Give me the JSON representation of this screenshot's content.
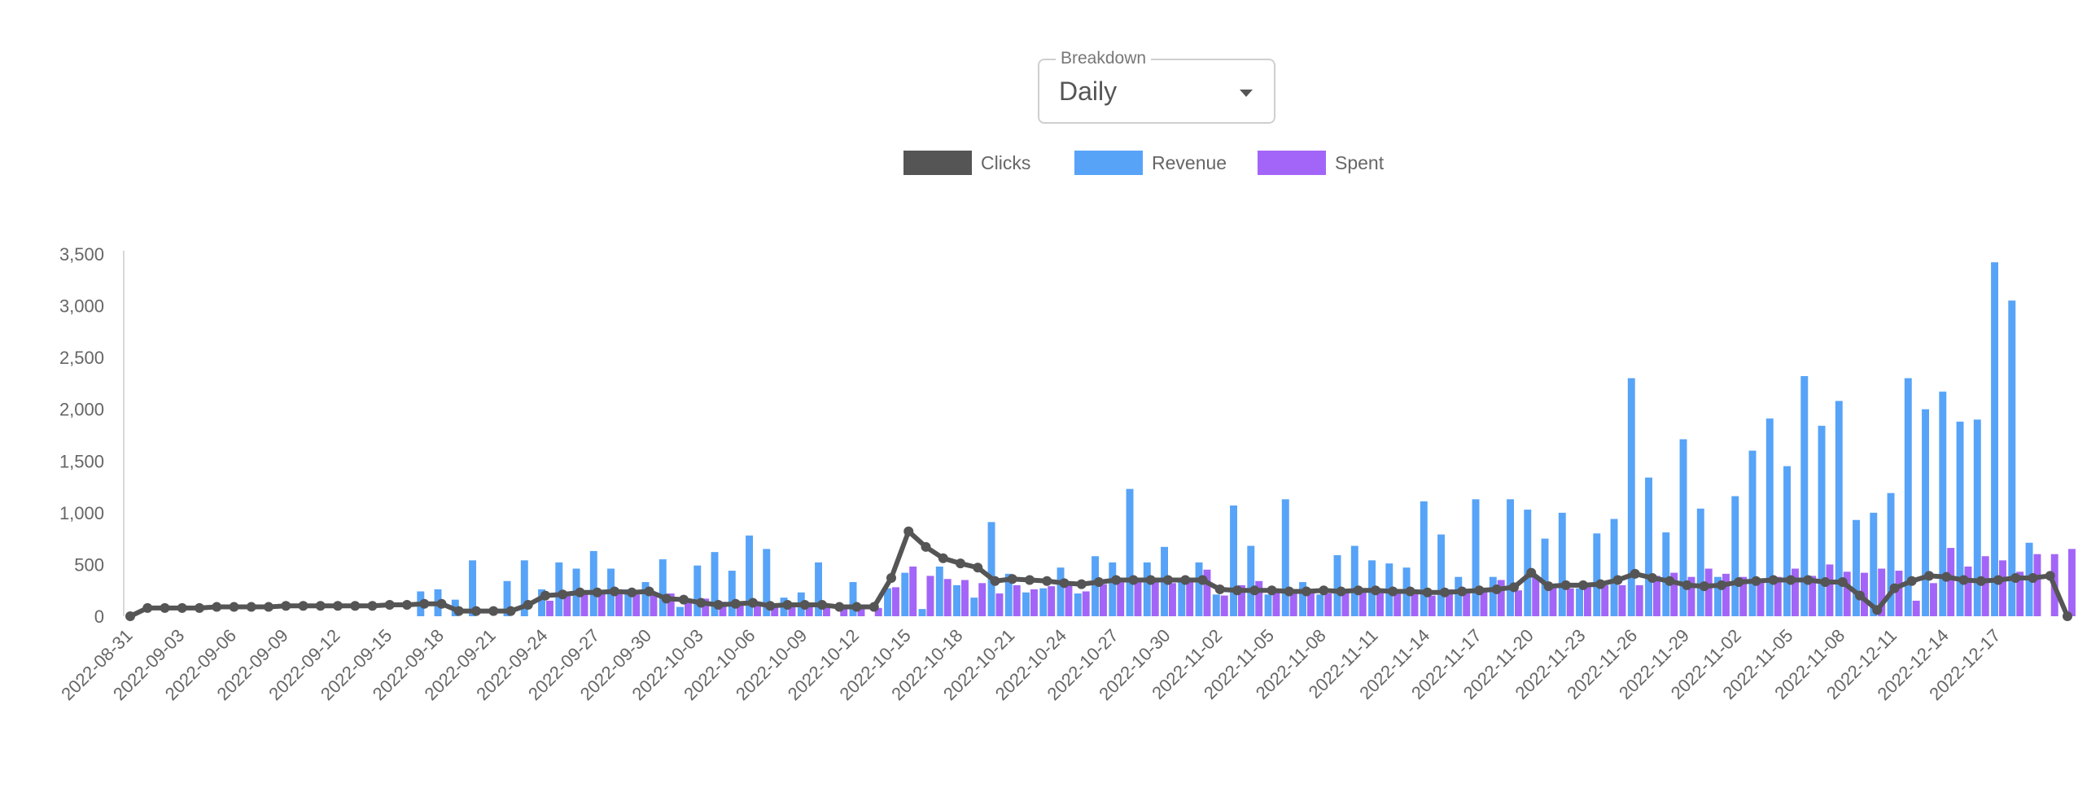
{
  "breakdown": {
    "label": "Breakdown",
    "value": "Daily"
  },
  "legend": [
    {
      "label": "Clicks",
      "color": "#555555"
    },
    {
      "label": "Revenue",
      "color": "#57a3f8"
    },
    {
      "label": "Spent",
      "color": "#a365f7"
    }
  ],
  "chart_data": {
    "type": "bar",
    "ylim": [
      0,
      3500
    ],
    "yticks": [
      0,
      500,
      1000,
      1500,
      2000,
      2500,
      3000,
      3500
    ],
    "ytick_labels": [
      "0",
      "500",
      "1,000",
      "1,500",
      "2,000",
      "2,500",
      "3,000",
      "3,500"
    ],
    "xtick_labels": [
      "2022-08-31",
      "2022-09-03",
      "2022-09-06",
      "2022-09-09",
      "2022-09-12",
      "2022-09-15",
      "2022-09-18",
      "2022-09-21",
      "2022-09-24",
      "2022-09-27",
      "2022-09-30",
      "2022-10-03",
      "2022-10-06",
      "2022-10-09",
      "2022-10-12",
      "2022-10-15",
      "2022-10-18",
      "2022-10-21",
      "2022-10-24",
      "2022-10-27",
      "2022-10-30",
      "2022-11-02",
      "2022-11-05",
      "2022-11-08",
      "2022-11-11",
      "2022-11-14",
      "2022-11-17",
      "2022-11-20",
      "2022-11-23",
      "2022-11-26",
      "2022-11-29",
      "2022-11-02",
      "2022-11-05",
      "2022-11-08",
      "2022-12-11",
      "2022-12-14",
      "2022-12-17"
    ],
    "series": [
      {
        "name": "Revenue",
        "type": "bar",
        "color": "#57a3f8",
        "values": [
          0,
          0,
          0,
          0,
          0,
          0,
          0,
          0,
          0,
          0,
          0,
          0,
          0,
          0,
          0,
          0,
          0,
          240,
          260,
          160,
          540,
          0,
          340,
          540,
          260,
          520,
          460,
          630,
          460,
          260,
          330,
          550,
          90,
          490,
          620,
          440,
          780,
          650,
          180,
          230,
          520,
          0,
          330,
          0,
          270,
          420,
          70,
          480,
          300,
          180,
          910,
          410,
          230,
          270,
          470,
          220,
          580,
          520,
          1230,
          520,
          670,
          360,
          520,
          210,
          1070,
          680,
          210,
          1130,
          330,
          210,
          590,
          680,
          540,
          510,
          470,
          1110,
          790,
          380,
          1130,
          380,
          1130,
          1030,
          750,
          1000,
          270,
          800,
          940,
          2300,
          1340,
          810,
          1710,
          1040,
          380,
          1160,
          1600,
          1910,
          1450,
          2320,
          1840,
          2080,
          930,
          1000,
          1190,
          2300,
          2000,
          2170,
          1880,
          1900,
          3420,
          3050,
          710
        ]
      },
      {
        "name": "Spent",
        "type": "bar",
        "color": "#a365f7",
        "values": [
          0,
          0,
          0,
          0,
          0,
          0,
          0,
          0,
          0,
          0,
          0,
          0,
          0,
          0,
          0,
          0,
          0,
          0,
          0,
          0,
          0,
          0,
          0,
          0,
          150,
          240,
          230,
          240,
          260,
          210,
          220,
          220,
          170,
          170,
          140,
          130,
          120,
          100,
          100,
          130,
          120,
          90,
          70,
          80,
          280,
          480,
          390,
          360,
          350,
          320,
          220,
          300,
          260,
          290,
          300,
          240,
          310,
          340,
          340,
          360,
          320,
          340,
          450,
          200,
          300,
          340,
          250,
          230,
          240,
          220,
          240,
          230,
          240,
          230,
          220,
          200,
          260,
          220,
          250,
          350,
          250,
          390,
          300,
          270,
          280,
          300,
          300,
          300,
          390,
          420,
          380,
          460,
          410,
          380,
          360,
          380,
          460,
          390,
          500,
          430,
          420,
          460,
          440,
          150,
          320,
          660,
          480,
          580,
          540,
          430,
          600,
          600,
          650
        ]
      },
      {
        "name": "Clicks",
        "type": "line",
        "color": "#555555",
        "values": [
          0,
          80,
          80,
          80,
          80,
          90,
          90,
          90,
          90,
          100,
          100,
          100,
          100,
          100,
          100,
          110,
          110,
          120,
          120,
          50,
          50,
          50,
          50,
          110,
          200,
          210,
          230,
          230,
          240,
          230,
          240,
          170,
          160,
          130,
          110,
          120,
          130,
          100,
          110,
          110,
          110,
          90,
          90,
          90,
          370,
          820,
          670,
          560,
          510,
          470,
          340,
          360,
          350,
          340,
          320,
          310,
          330,
          350,
          350,
          350,
          350,
          350,
          350,
          260,
          250,
          250,
          250,
          240,
          240,
          250,
          240,
          250,
          250,
          240,
          240,
          230,
          230,
          240,
          250,
          260,
          280,
          420,
          290,
          300,
          300,
          310,
          350,
          410,
          370,
          340,
          300,
          290,
          300,
          330,
          340,
          350,
          350,
          350,
          330,
          330,
          200,
          60,
          270,
          340,
          390,
          380,
          350,
          340,
          350,
          370,
          370,
          390,
          0
        ]
      }
    ]
  }
}
